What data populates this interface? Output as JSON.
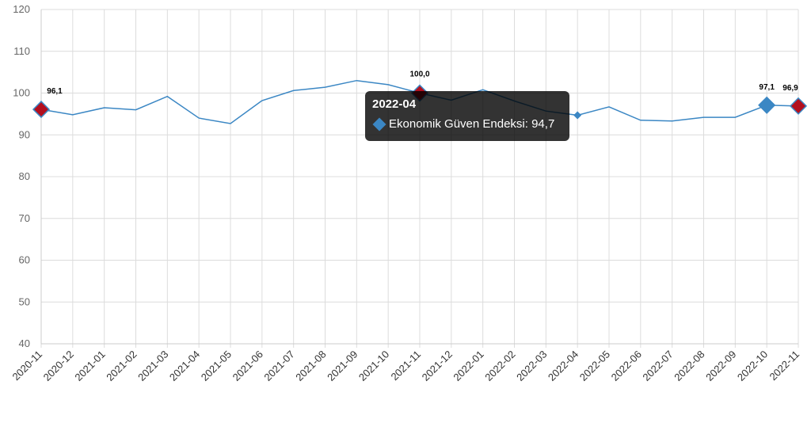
{
  "chart_data": {
    "type": "line",
    "title": "",
    "xlabel": "",
    "ylabel": "",
    "ylim": [
      40,
      120
    ],
    "yticks": [
      40,
      50,
      60,
      70,
      80,
      90,
      100,
      110,
      120
    ],
    "grid": true,
    "categories": [
      "2020-11",
      "2020-12",
      "2021-01",
      "2021-02",
      "2021-03",
      "2021-04",
      "2021-05",
      "2021-06",
      "2021-07",
      "2021-08",
      "2021-09",
      "2021-10",
      "2021-11",
      "2021-12",
      "2022-01",
      "2022-02",
      "2022-03",
      "2022-04",
      "2022-05",
      "2022-06",
      "2022-07",
      "2022-08",
      "2022-09",
      "2022-10",
      "2022-11"
    ],
    "series": [
      {
        "name": "Ekonomik Güven Endeksi",
        "color": "#3b87c4",
        "values": [
          96.1,
          94.8,
          96.5,
          96.0,
          99.2,
          94.0,
          92.7,
          98.2,
          100.6,
          101.4,
          103.0,
          102.0,
          100.0,
          98.3,
          100.8,
          98.1,
          95.7,
          94.7,
          96.7,
          93.5,
          93.3,
          94.2,
          94.2,
          97.1,
          96.9
        ]
      }
    ],
    "highlighted_points": [
      {
        "category": "2020-11",
        "label": "96,1",
        "color": "#b30f1e"
      },
      {
        "category": "2021-11",
        "label": "100,0",
        "color": "#b30f1e"
      },
      {
        "category": "2022-10",
        "label": "97,1",
        "color": "#3b87c4"
      },
      {
        "category": "2022-11",
        "label": "96,9",
        "color": "#b30f1e"
      }
    ],
    "tooltip": {
      "title": "2022-04",
      "text": "Ekonomik Güven Endeksi: 94,7",
      "swatch_color": "#3b87c4"
    }
  }
}
